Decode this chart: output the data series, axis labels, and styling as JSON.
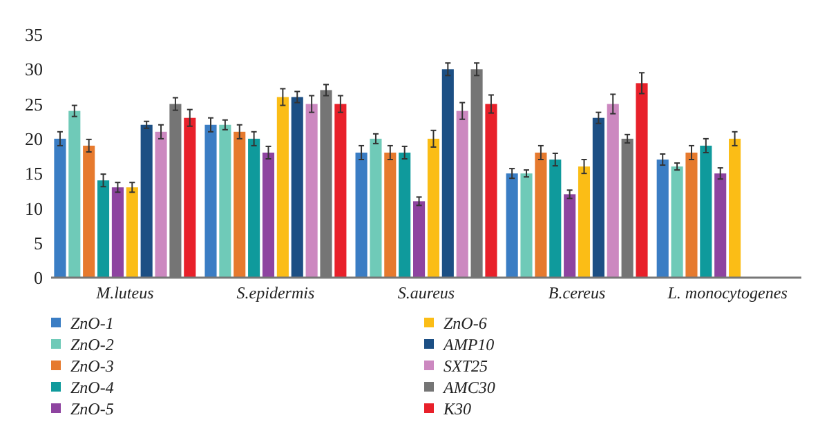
{
  "chart_data": {
    "type": "bar",
    "categories": [
      "M.luteus",
      "S.epidermis",
      "S.aureus",
      "B.cereus",
      "L. monocytogenes"
    ],
    "ylim": [
      0,
      35
    ],
    "yticks": [
      0,
      5,
      10,
      15,
      20,
      25,
      30,
      35
    ],
    "legend": "bottom",
    "grid": false,
    "series": [
      {
        "name": "ZnO-1",
        "color": "#3a7dc4",
        "values": [
          20,
          22,
          18,
          15,
          17
        ],
        "errors": [
          1,
          1,
          1,
          0.7,
          0.8
        ]
      },
      {
        "name": "ZnO-2",
        "color": "#6fcab8",
        "values": [
          24,
          22,
          20,
          15,
          16
        ],
        "errors": [
          0.8,
          0.7,
          0.7,
          0.5,
          0.5
        ]
      },
      {
        "name": "ZnO-3",
        "color": "#e67a2e",
        "values": [
          19,
          21,
          18,
          18,
          18
        ],
        "errors": [
          0.9,
          1,
          1,
          1,
          1
        ]
      },
      {
        "name": "ZnO-4",
        "color": "#0f9a9c",
        "values": [
          14,
          20,
          18,
          17,
          19
        ],
        "errors": [
          0.9,
          1,
          0.9,
          0.9,
          1
        ]
      },
      {
        "name": "ZnO-5",
        "color": "#8e44a0",
        "values": [
          13,
          18,
          11,
          12,
          15
        ],
        "errors": [
          0.7,
          0.9,
          0.6,
          0.6,
          0.8
        ]
      },
      {
        "name": "ZnO-6",
        "color": "#fbbd16",
        "values": [
          13,
          26,
          20,
          16,
          20
        ],
        "errors": [
          0.7,
          1.2,
          1.2,
          1,
          1
        ]
      },
      {
        "name": "AMP10",
        "color": "#1c4f84",
        "values": [
          22,
          26,
          30,
          23,
          null
        ],
        "errors": [
          0.5,
          0.8,
          0.9,
          0.8,
          null
        ]
      },
      {
        "name": "SXT25",
        "color": "#cc88c0",
        "values": [
          21,
          25,
          24,
          25,
          null
        ],
        "errors": [
          1,
          1.2,
          1.2,
          1.4,
          null
        ]
      },
      {
        "name": "AMC30",
        "color": "#757575",
        "values": [
          25,
          27,
          30,
          20,
          null
        ],
        "errors": [
          0.9,
          0.8,
          0.9,
          0.6,
          null
        ]
      },
      {
        "name": "K30",
        "color": "#e8202a",
        "values": [
          23,
          25,
          25,
          28,
          null
        ],
        "errors": [
          1.2,
          1.2,
          1.3,
          1.5,
          null
        ]
      }
    ]
  }
}
